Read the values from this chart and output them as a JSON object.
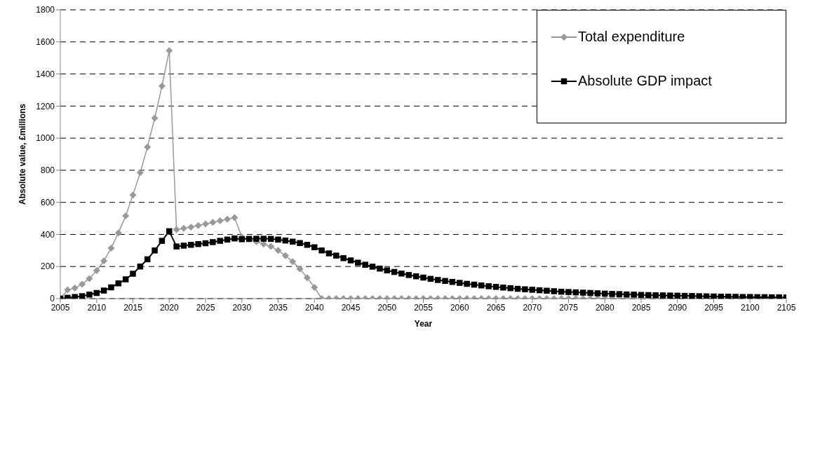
{
  "chart_data": {
    "type": "line",
    "xlabel": "Year",
    "ylabel": "Absolute value, £millions",
    "x": [
      2005,
      2006,
      2007,
      2008,
      2009,
      2010,
      2011,
      2012,
      2013,
      2014,
      2015,
      2016,
      2017,
      2018,
      2019,
      2020,
      2021,
      2022,
      2023,
      2024,
      2025,
      2026,
      2027,
      2028,
      2029,
      2030,
      2031,
      2032,
      2033,
      2034,
      2035,
      2036,
      2037,
      2038,
      2039,
      2040,
      2041,
      2042,
      2043,
      2044,
      2045,
      2046,
      2047,
      2048,
      2049,
      2050,
      2051,
      2052,
      2053,
      2054,
      2055,
      2056,
      2057,
      2058,
      2059,
      2060,
      2061,
      2062,
      2063,
      2064,
      2065,
      2066,
      2067,
      2068,
      2069,
      2070,
      2071,
      2072,
      2073,
      2074,
      2075,
      2076,
      2077,
      2078,
      2079,
      2080,
      2081,
      2082,
      2083,
      2084,
      2085,
      2086,
      2087,
      2088,
      2089,
      2090,
      2091,
      2092,
      2093,
      2094,
      2095,
      2096,
      2097,
      2098,
      2099,
      2100,
      2101,
      2102,
      2103,
      2104,
      2105
    ],
    "series": [
      {
        "name": "Total expenditure",
        "color": "#999999",
        "marker": "diamond",
        "values": [
          0,
          55,
          65,
          90,
          125,
          175,
          235,
          315,
          410,
          515,
          645,
          785,
          945,
          1125,
          1325,
          1545,
          430,
          438,
          446,
          455,
          465,
          475,
          485,
          495,
          505,
          385,
          370,
          355,
          340,
          325,
          300,
          268,
          230,
          185,
          130,
          70,
          0,
          0,
          0,
          0,
          0,
          0,
          0,
          0,
          0,
          0,
          0,
          0,
          0,
          0,
          0,
          0,
          0,
          0,
          0,
          0,
          0,
          0,
          0,
          0,
          0,
          0,
          0,
          0,
          0,
          0,
          0,
          0,
          0,
          0,
          0,
          0,
          0,
          0,
          0,
          0,
          0,
          0,
          0,
          0,
          0,
          0,
          0,
          0,
          0,
          0,
          0,
          0,
          0,
          0,
          0,
          0,
          0,
          0,
          0,
          0,
          0,
          0,
          0,
          0,
          0
        ]
      },
      {
        "name": "Absolute GDP impact",
        "color": "#000000",
        "marker": "square",
        "values": [
          0,
          5,
          10,
          15,
          25,
          35,
          50,
          70,
          95,
          120,
          155,
          200,
          245,
          300,
          360,
          420,
          325,
          330,
          335,
          340,
          345,
          352,
          360,
          368,
          375,
          370,
          372,
          373,
          373,
          372,
          368,
          362,
          355,
          346,
          335,
          320,
          300,
          282,
          268,
          252,
          238,
          224,
          211,
          199,
          187,
          176,
          166,
          156,
          147,
          139,
          131,
          123,
          116,
          110,
          104,
          98,
          92,
          87,
          82,
          77,
          73,
          69,
          65,
          61,
          58,
          55,
          52,
          49,
          46,
          43,
          41,
          39,
          37,
          35,
          33,
          31,
          29,
          28,
          26,
          25,
          23,
          22,
          21,
          20,
          19,
          18,
          17,
          16,
          15,
          14,
          13,
          12,
          12,
          11,
          10,
          10,
          9,
          9,
          8,
          8,
          7
        ]
      }
    ],
    "xlim": [
      2005,
      2105
    ],
    "xticks": [
      2005,
      2010,
      2015,
      2020,
      2025,
      2030,
      2035,
      2040,
      2045,
      2050,
      2055,
      2060,
      2065,
      2070,
      2075,
      2080,
      2085,
      2090,
      2095,
      2100,
      2105
    ],
    "ylim": [
      0,
      1800
    ],
    "yticks": [
      0,
      200,
      400,
      600,
      800,
      1000,
      1200,
      1400,
      1600,
      1800
    ],
    "grid": "y",
    "legend": "top right"
  }
}
